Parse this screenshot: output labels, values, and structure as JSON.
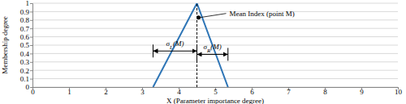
{
  "chart_data": {
    "type": "line",
    "x_label": "X (Parameter importance degree)",
    "y_label": "Membership degree",
    "x": [
      3.3,
      4.5,
      5.35
    ],
    "series": [
      {
        "values": [
          0,
          1,
          0
        ],
        "color": "#2e75b6"
      }
    ],
    "xlim": [
      0,
      10
    ],
    "xticks": [
      0,
      1,
      2,
      3,
      4,
      5,
      6,
      7,
      8,
      9,
      10
    ],
    "ylim": [
      0,
      1
    ],
    "yticks": [
      0,
      0.1,
      0.2,
      0.3,
      0.4,
      0.5,
      0.6,
      0.7,
      0.8,
      0.9,
      1
    ],
    "grid": true,
    "mean_line": {
      "x": 4.5,
      "y": 1
    },
    "point": {
      "label": "Mean Index (point M)",
      "x": 4.5,
      "y": 0.83
    },
    "spreads": [
      {
        "label": "σL(M)",
        "from": 3.3,
        "to": 4.5,
        "y": 0.43
      },
      {
        "label": "σR(M)",
        "from": 4.5,
        "to": 5.35,
        "y": 0.39
      }
    ]
  }
}
